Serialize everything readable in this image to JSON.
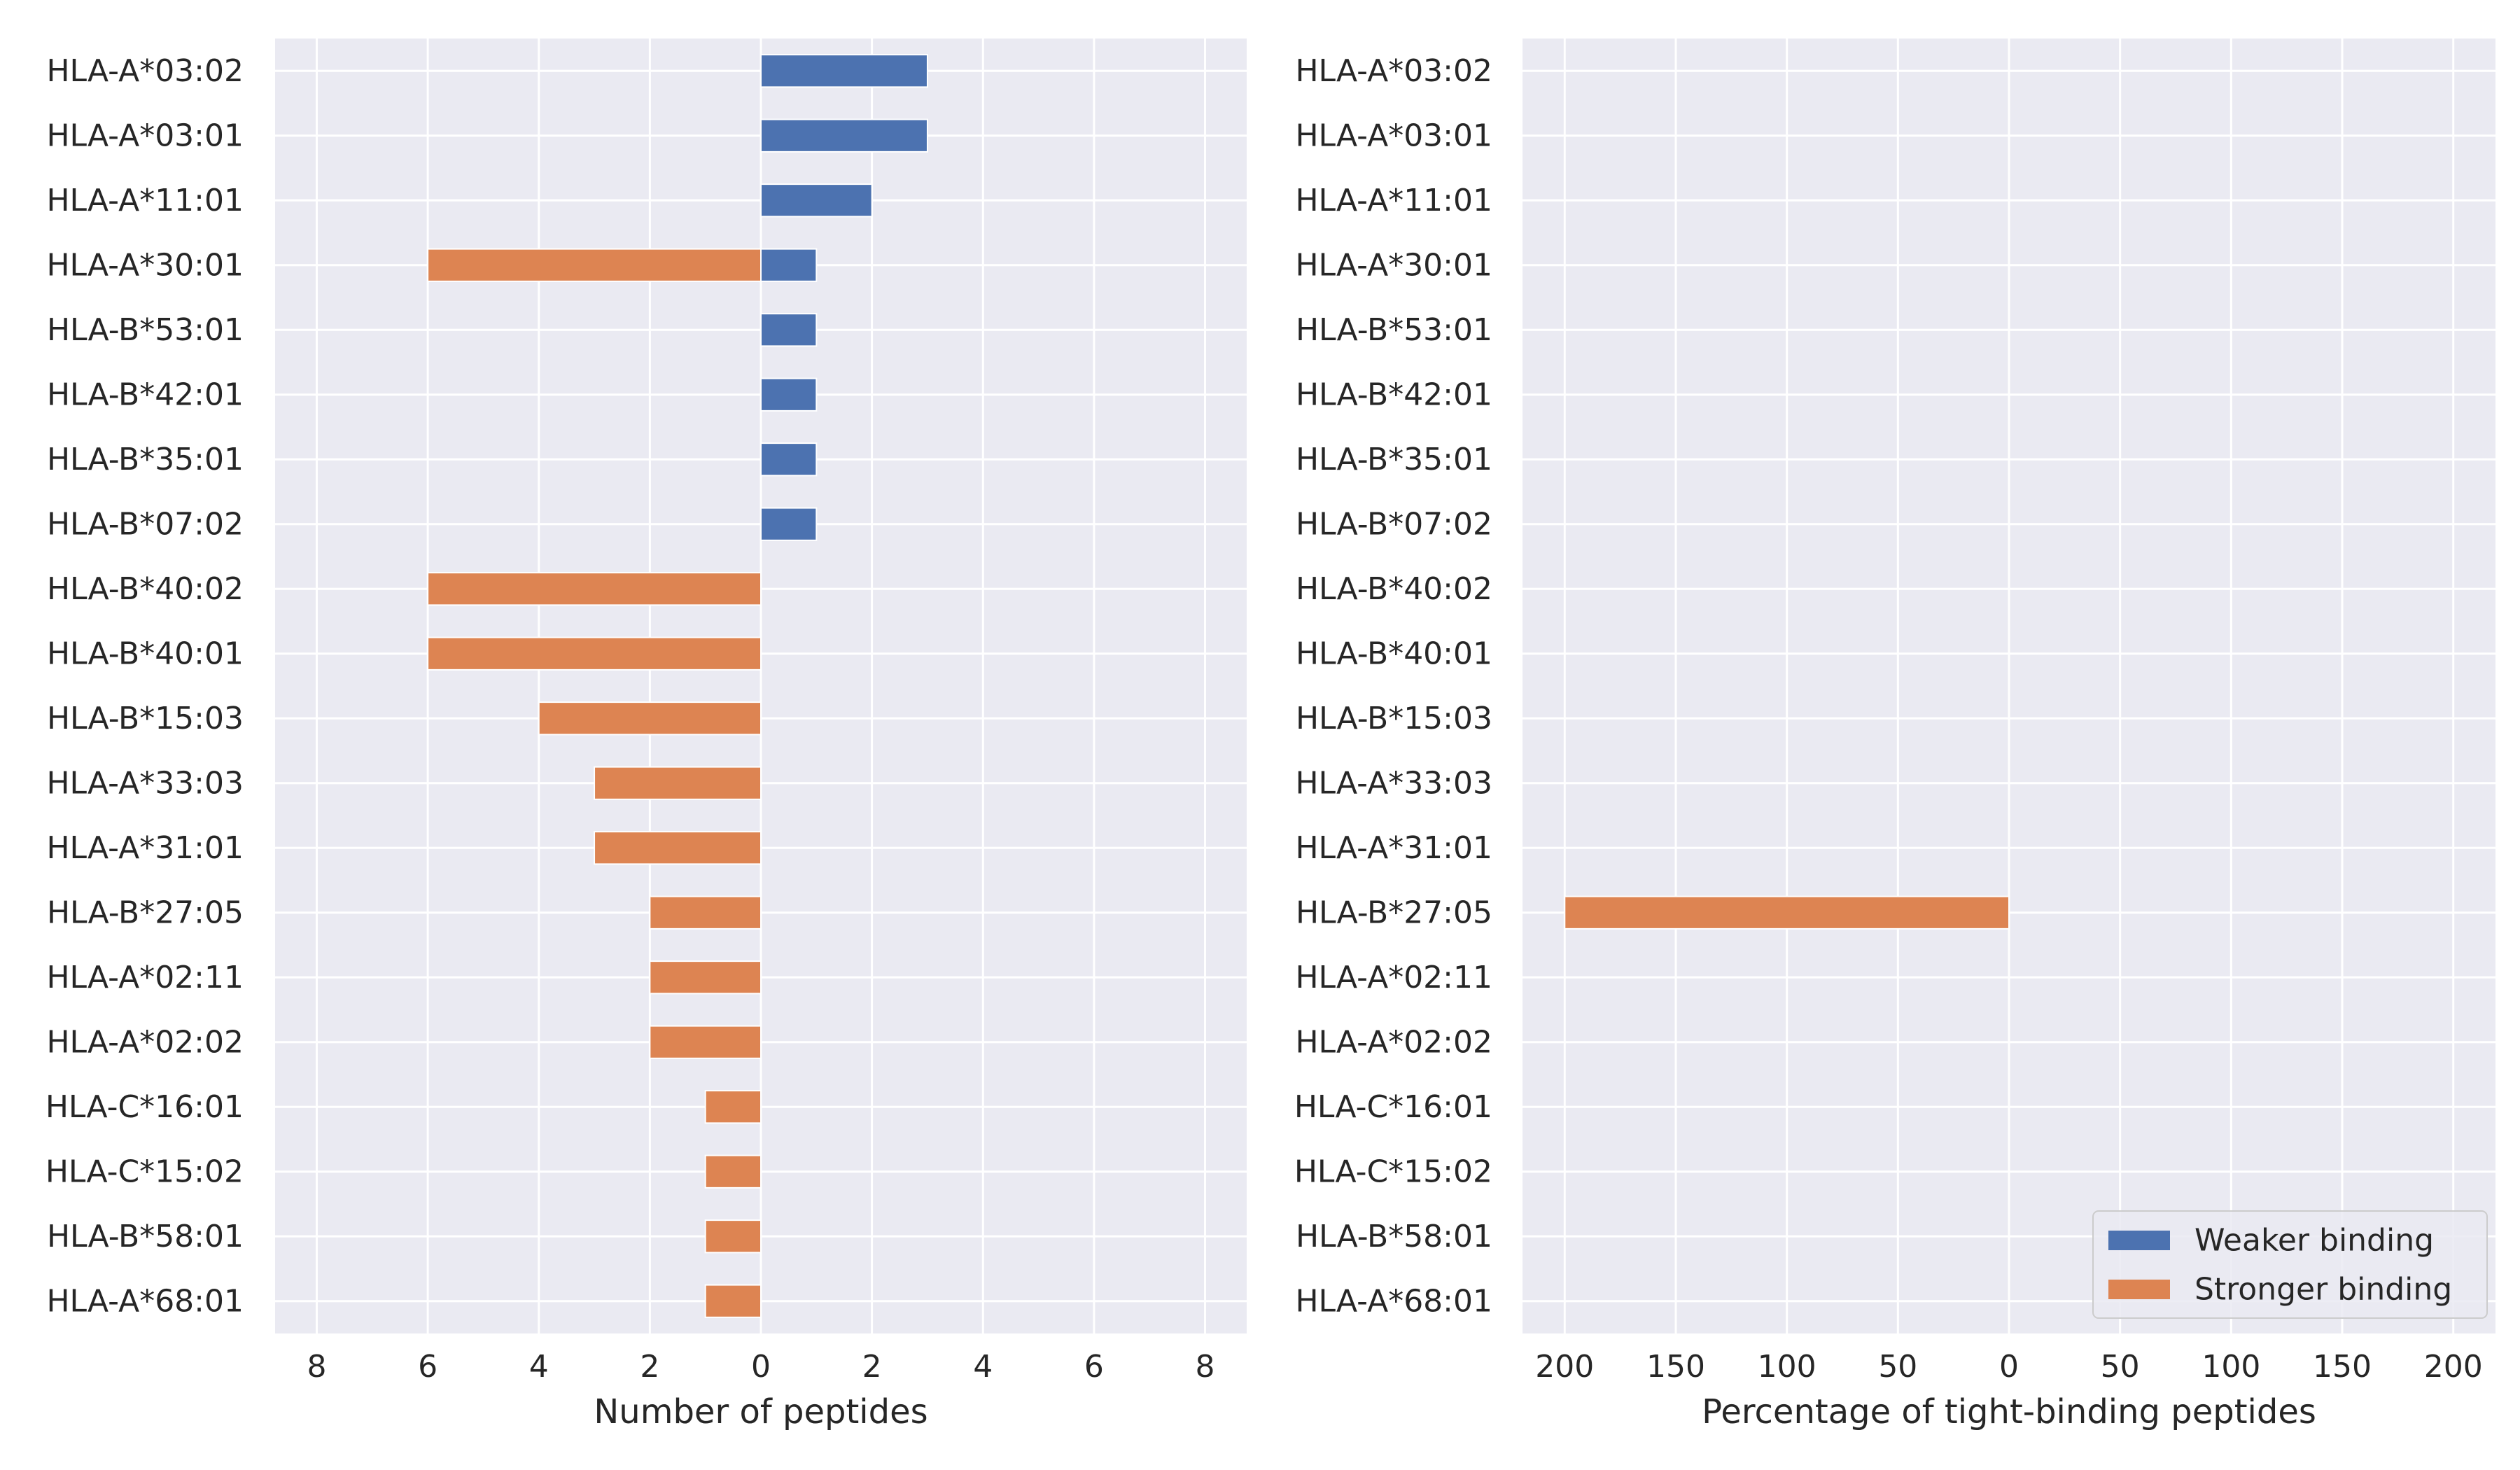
{
  "chart_data": [
    {
      "type": "bar",
      "orientation": "horizontal",
      "categories": [
        "HLA-A*03:02",
        "HLA-A*03:01",
        "HLA-A*11:01",
        "HLA-A*30:01",
        "HLA-B*53:01",
        "HLA-B*42:01",
        "HLA-B*35:01",
        "HLA-B*07:02",
        "HLA-B*40:02",
        "HLA-B*40:01",
        "HLA-B*15:03",
        "HLA-A*33:03",
        "HLA-A*31:01",
        "HLA-B*27:05",
        "HLA-A*02:11",
        "HLA-A*02:02",
        "HLA-C*16:01",
        "HLA-C*15:02",
        "HLA-B*58:01",
        "HLA-A*68:01"
      ],
      "series": [
        {
          "name": "Weaker binding",
          "direction": "right",
          "color": "#4c72b0",
          "values": [
            3,
            3,
            2,
            1,
            1,
            1,
            1,
            1,
            0,
            0,
            0,
            0,
            0,
            0,
            0,
            0,
            0,
            0,
            0,
            0
          ]
        },
        {
          "name": "Stronger binding",
          "direction": "left",
          "color": "#dd8452",
          "values": [
            0,
            0,
            0,
            6,
            0,
            0,
            0,
            0,
            6,
            6,
            4,
            3,
            3,
            2,
            2,
            2,
            1,
            1,
            1,
            1
          ]
        }
      ],
      "xlabel": "Number of peptides",
      "xlim": [
        -8.75,
        8.75
      ],
      "xticks": [
        -8,
        -6,
        -4,
        -2,
        0,
        2,
        4,
        6,
        8
      ],
      "xtick_labels": [
        "8",
        "6",
        "4",
        "2",
        "0",
        "2",
        "4",
        "6",
        "8"
      ],
      "grid": true
    },
    {
      "type": "bar",
      "orientation": "horizontal",
      "categories": [
        "HLA-A*03:02",
        "HLA-A*03:01",
        "HLA-A*11:01",
        "HLA-A*30:01",
        "HLA-B*53:01",
        "HLA-B*42:01",
        "HLA-B*35:01",
        "HLA-B*07:02",
        "HLA-B*40:02",
        "HLA-B*40:01",
        "HLA-B*15:03",
        "HLA-A*33:03",
        "HLA-A*31:01",
        "HLA-B*27:05",
        "HLA-A*02:11",
        "HLA-A*02:02",
        "HLA-C*16:01",
        "HLA-C*15:02",
        "HLA-B*58:01",
        "HLA-A*68:01"
      ],
      "series": [
        {
          "name": "Weaker binding",
          "direction": "right",
          "color": "#4c72b0",
          "values": [
            0,
            0,
            0,
            0,
            0,
            0,
            0,
            0,
            0,
            0,
            0,
            0,
            0,
            0,
            0,
            0,
            0,
            0,
            0,
            0
          ]
        },
        {
          "name": "Stronger binding",
          "direction": "left",
          "color": "#dd8452",
          "values": [
            0,
            0,
            0,
            0,
            0,
            0,
            0,
            0,
            0,
            0,
            0,
            0,
            0,
            200,
            0,
            0,
            0,
            0,
            0,
            0
          ]
        }
      ],
      "xlabel": "Percentage of tight-binding peptides",
      "xlim": [
        -219,
        219
      ],
      "xticks": [
        -200,
        -150,
        -100,
        -50,
        0,
        50,
        100,
        150,
        200
      ],
      "xtick_labels": [
        "200",
        "150",
        "100",
        "50",
        "0",
        "50",
        "100",
        "150",
        "200"
      ],
      "grid": true,
      "legend": {
        "placement": "lower-right",
        "entries": [
          "Weaker binding",
          "Stronger binding"
        ]
      }
    }
  ],
  "style": {
    "panel_background": "#eaeaf2",
    "grid_color": "#ffffff",
    "text_color": "#262626"
  }
}
